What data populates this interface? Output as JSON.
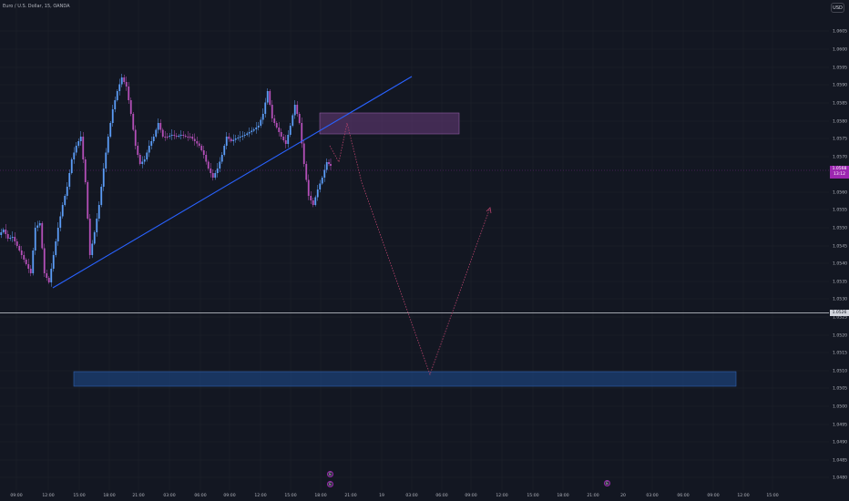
{
  "header": {
    "symbol": "Euro / U.S. Dollar, 15, OANDA",
    "currency": "USD"
  },
  "price_axis": {
    "labels": [
      "1.0605",
      "1.0600",
      "1.0595",
      "1.0590",
      "1.0585",
      "1.0580",
      "1.0575",
      "1.0570",
      "1.0560",
      "1.0555",
      "1.0550",
      "1.0545",
      "1.0540",
      "1.0535",
      "1.0530",
      "1.0525",
      "1.0520",
      "1.0515",
      "1.0510",
      "1.0505",
      "1.0500",
      "1.0495",
      "1.0490",
      "1.0485",
      "1.0480"
    ],
    "current_price": "1.0568",
    "current_countdown": "13:12",
    "hline_price": "1.0526"
  },
  "time_axis": {
    "labels": [
      "09:00",
      "12:00",
      "15:00",
      "18:00",
      "21:00",
      "03:00",
      "06:00",
      "09:00",
      "12:00",
      "15:00",
      "18:00",
      "21:00",
      "19",
      "03:00",
      "06:00",
      "09:00",
      "12:00",
      "15:00",
      "18:00",
      "21:00",
      "20",
      "03:00",
      "06:00",
      "09:00",
      "12:00",
      "15:00"
    ]
  },
  "events": [
    {
      "glyph": "E"
    },
    {
      "glyph": "E"
    },
    {
      "glyph": "E"
    }
  ],
  "colors": {
    "background": "#131722",
    "bull": "#5b9cf6",
    "bear": "#b44fb8",
    "trendline": "#2962ff",
    "supply_zone": "#6a3d7c",
    "demand_zone": "#1e4a8a",
    "projection": "#b5426b",
    "hline": "#d1d4dc"
  }
}
